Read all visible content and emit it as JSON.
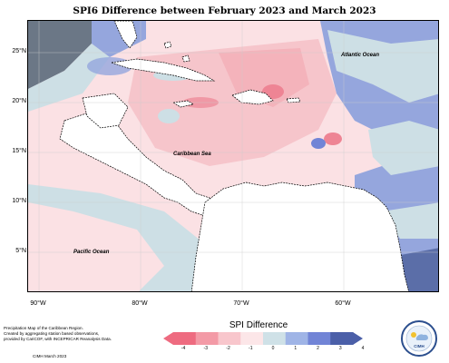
{
  "title": "SPI6 Difference between February 2023 and March 2023",
  "lat_labels": [
    "25°N",
    "20°N",
    "15°N",
    "10°N",
    "5°N"
  ],
  "lon_labels": [
    "90°W",
    "80°W",
    "70°W",
    "60°W"
  ],
  "ocean_labels": {
    "atlantic": "Atlantic Ocean",
    "caribbean": "Caribbean Sea",
    "pacific": "Pacific Ocean"
  },
  "legend": {
    "title": "SPI Difference",
    "ticks": [
      "-4",
      "-3",
      "-2",
      "-1",
      "0",
      "1",
      "2",
      "3",
      "4"
    ],
    "colors": [
      "#ee6b80",
      "#f39aa6",
      "#f8c6cc",
      "#fce6e8",
      "#cfe1e7",
      "#9fb4e6",
      "#7184d6",
      "#4b5fa8"
    ]
  },
  "notes": [
    "Precipitation Map of the Caribbean Region.",
    "Created by aggregating station based observations,",
    "provided by CariCOF, with INCEPRICAR Reanalysis Data."
  ],
  "credit": "CIMH March 2023",
  "logo_text": "CIMH",
  "colors": {
    "land_white": "#ffffff",
    "light_pink": "#fbe1e4",
    "pink": "#f4b3bb",
    "deep_pink": "#ee8494",
    "light_teal": "#cddfe5",
    "blue": "#95a6dd",
    "dark_blue": "#5b6ea8",
    "outside_gray": "#6b7786"
  }
}
